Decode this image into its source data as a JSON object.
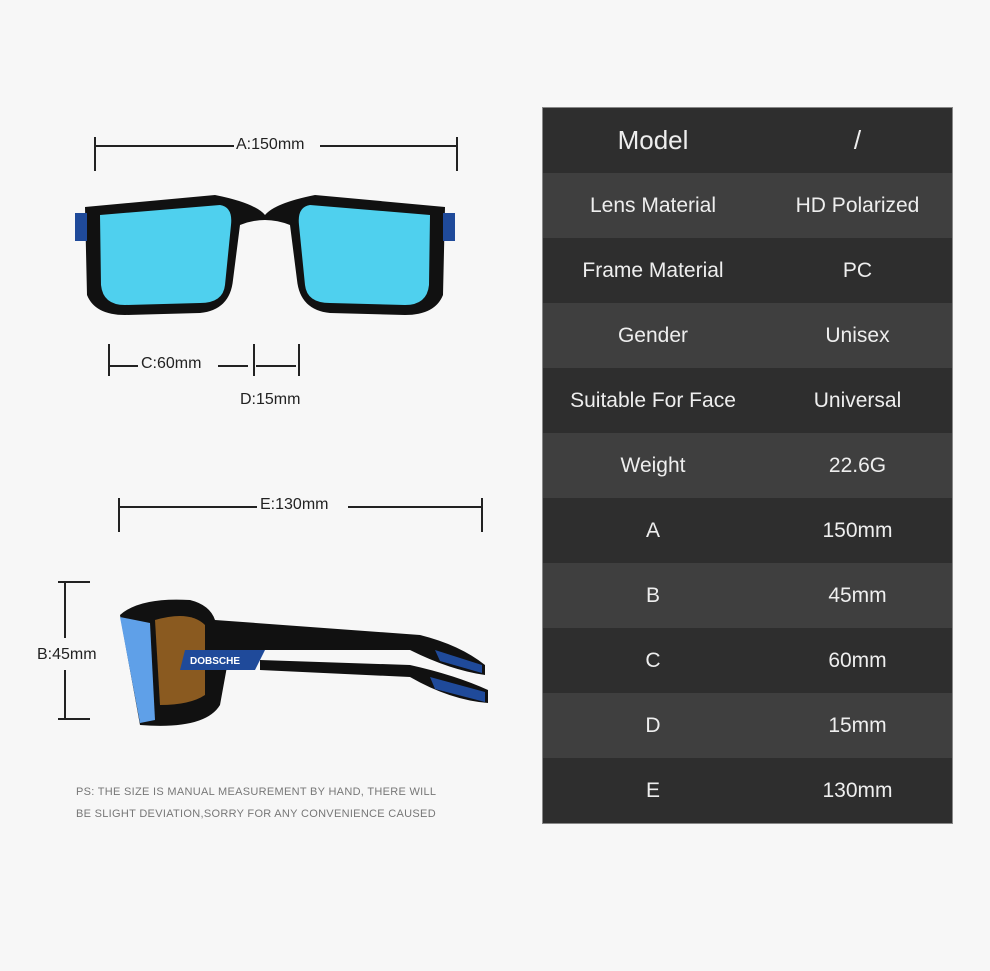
{
  "dimensions": {
    "A": "A:150mm",
    "C": "C:60mm",
    "D": "D:15mm",
    "E": "E:130mm",
    "B": "B:45mm"
  },
  "brand_logo": "DOBSCHE",
  "note": [
    "PS: THE SIZE IS MANUAL MEASUREMENT BY HAND, THERE WILL",
    "BE SLIGHT DEVIATION,SORRY FOR ANY CONVENIENCE CAUSED"
  ],
  "specs": [
    {
      "label": "Model",
      "value": "/"
    },
    {
      "label": "Lens Material",
      "value": "HD Polarized"
    },
    {
      "label": "Frame Material",
      "value": "PC"
    },
    {
      "label": "Gender",
      "value": "Unisex"
    },
    {
      "label": "Suitable For Face",
      "value": "Universal"
    },
    {
      "label": "Weight",
      "value": "22.6G"
    },
    {
      "label": "A",
      "value": "150mm"
    },
    {
      "label": "B",
      "value": "45mm"
    },
    {
      "label": "C",
      "value": "60mm"
    },
    {
      "label": "D",
      "value": "15mm"
    },
    {
      "label": "E",
      "value": "130mm"
    }
  ],
  "colors": {
    "lens_front": "#4fd0ee",
    "lens_side": "#8a5a20",
    "frame": "#111111",
    "accent": "#1f4a9a"
  }
}
